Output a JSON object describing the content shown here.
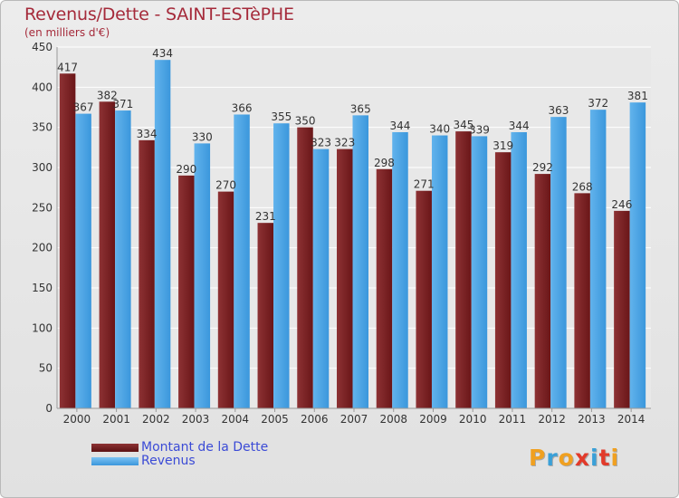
{
  "title": "Revenus/Dette - SAINT-ESTèPHE",
  "subtitle": "(en milliers d'€)",
  "legend": {
    "debt_label": "Montant de la Dette",
    "revenue_label": "Revenus"
  },
  "logo": {
    "letters": [
      "P",
      "r",
      "o",
      "x",
      "i",
      "t",
      "i"
    ],
    "colors": [
      "#f0a020",
      "#3aa0d8",
      "#f0a020",
      "#e23a2a",
      "#3aa0d8",
      "#e23a2a",
      "#f0a020"
    ]
  },
  "colors": {
    "debt": "#6e1a1c",
    "debt_light": "#8a2f31",
    "revenue": "#3f9de0",
    "revenue_light": "#5aaeea",
    "axis_text": "#333333",
    "grid": "#ffffff"
  },
  "chart_data": {
    "type": "bar",
    "categories": [
      "2000",
      "2001",
      "2002",
      "2003",
      "2004",
      "2005",
      "2006",
      "2007",
      "2008",
      "2009",
      "2010",
      "2011",
      "2012",
      "2013",
      "2014"
    ],
    "series": [
      {
        "name": "Montant de la Dette",
        "values": [
          417,
          382,
          334,
          290,
          270,
          231,
          350,
          323,
          298,
          271,
          345,
          319,
          292,
          268,
          246
        ]
      },
      {
        "name": "Revenus",
        "values": [
          367,
          371,
          434,
          330,
          366,
          355,
          323,
          365,
          344,
          340,
          339,
          344,
          363,
          372,
          381
        ]
      }
    ],
    "ylim": [
      0,
      450
    ],
    "yticks": [
      0,
      50,
      100,
      150,
      200,
      250,
      300,
      350,
      400,
      450
    ],
    "grid": true,
    "legend_position": "bottom-left"
  }
}
